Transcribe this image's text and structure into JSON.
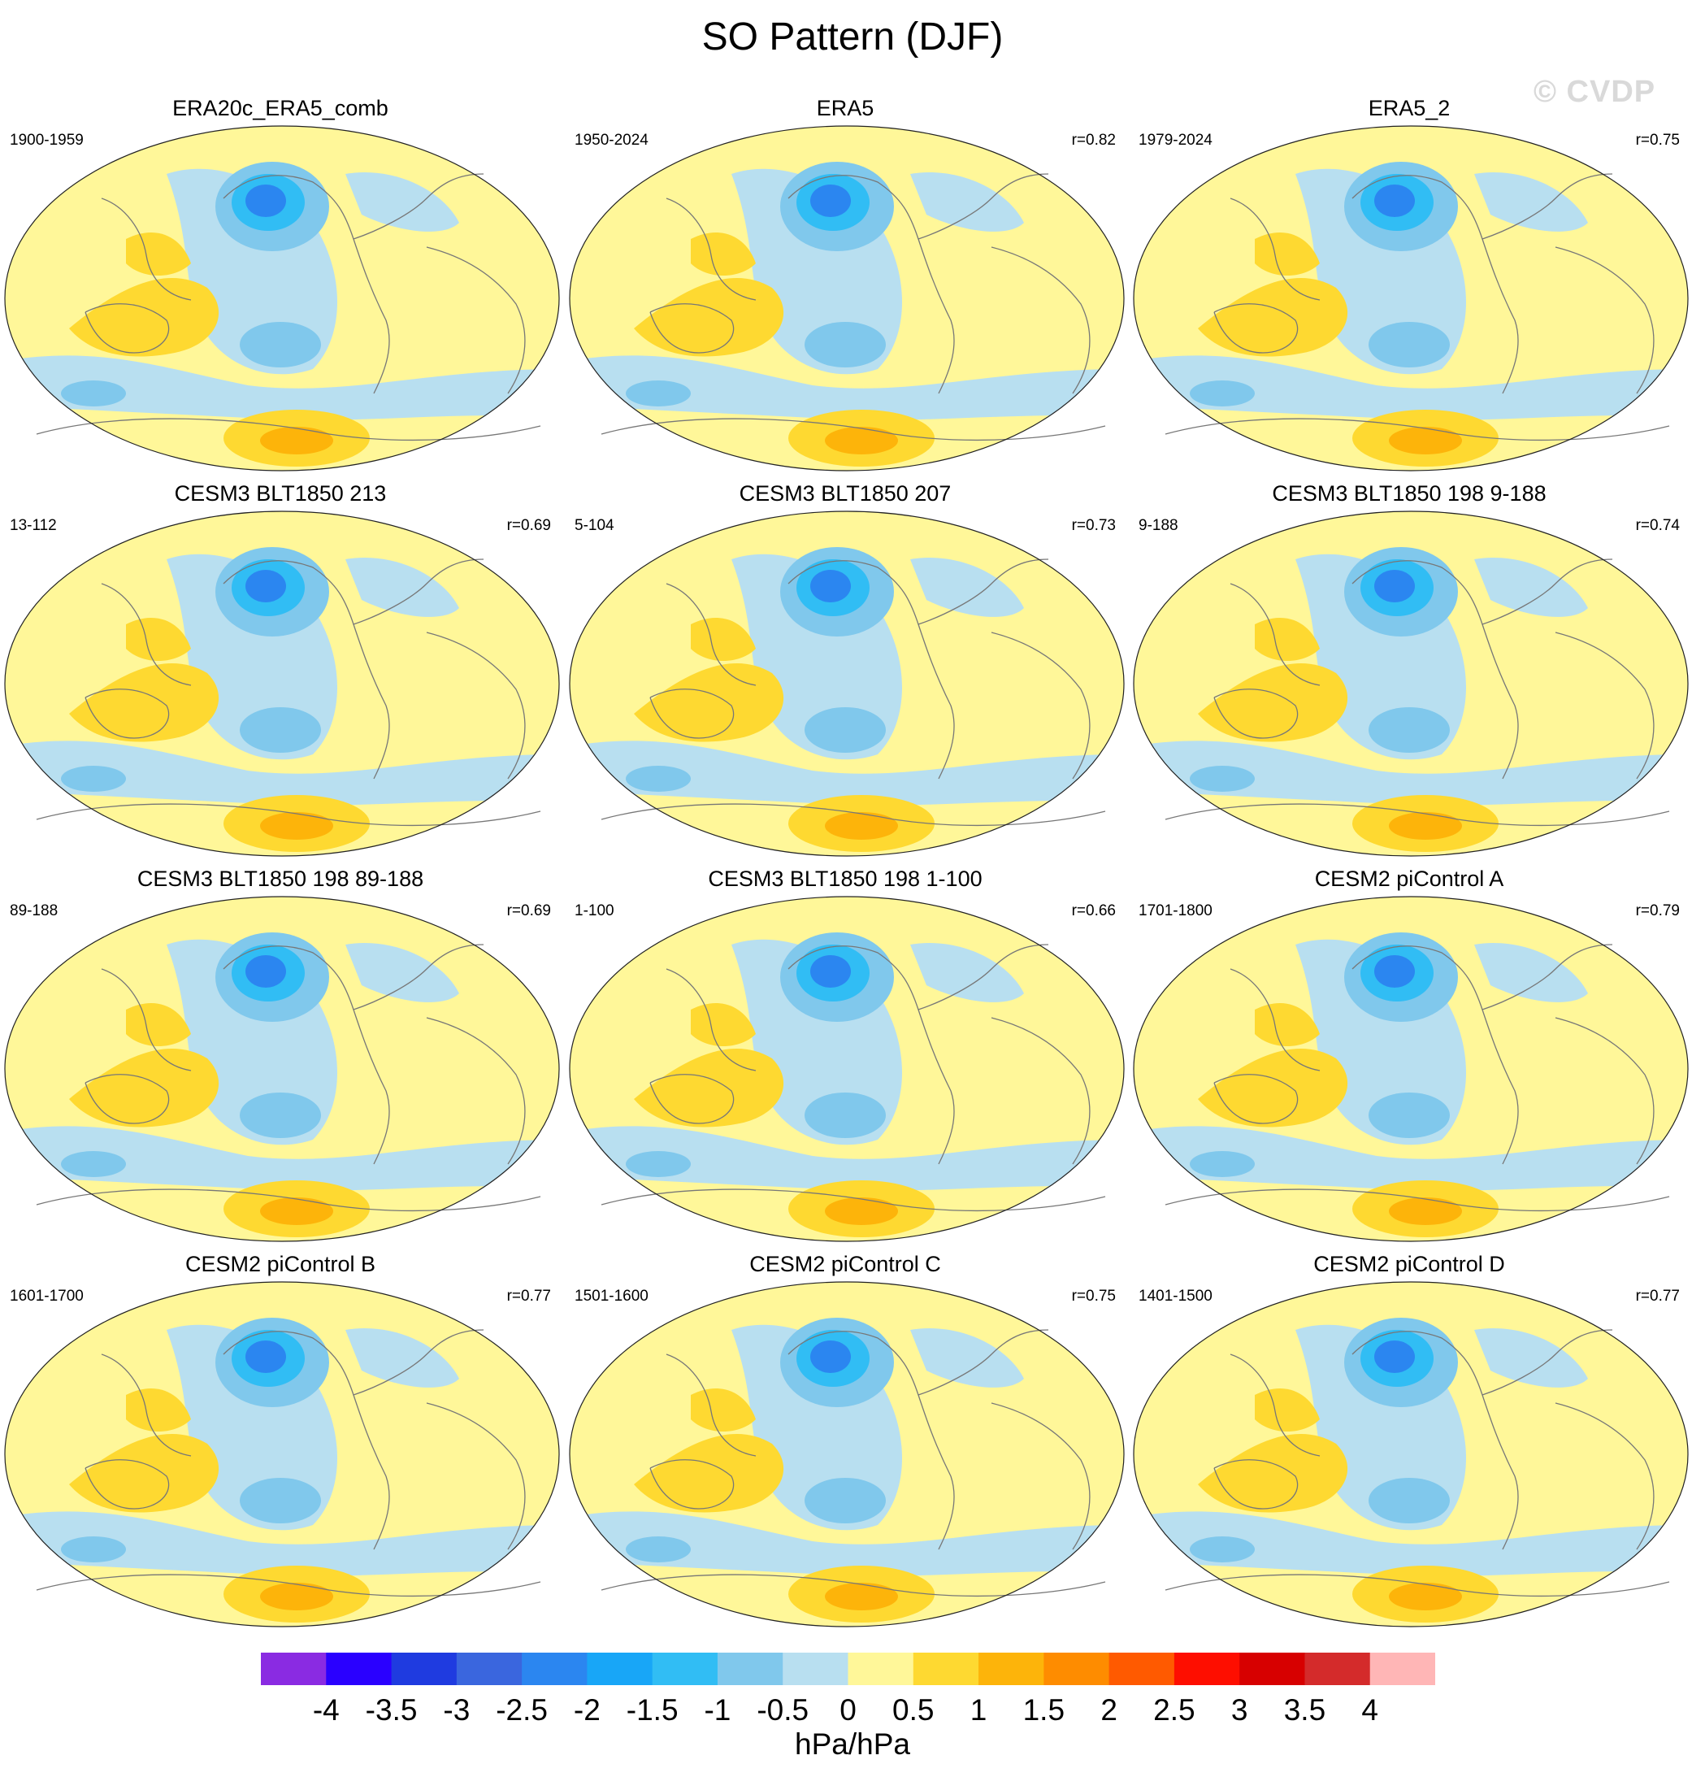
{
  "title": "SO Pattern (DJF)",
  "watermark": "© CVDP",
  "panels": [
    {
      "title": "ERA20c_ERA5_comb",
      "years": "1900-1959",
      "r": ""
    },
    {
      "title": "ERA5",
      "years": "1950-2024",
      "r": "r=0.82"
    },
    {
      "title": "ERA5_2",
      "years": "1979-2024",
      "r": "r=0.75"
    },
    {
      "title": "CESM3 BLT1850 213",
      "years": "13-112",
      "r": "r=0.69"
    },
    {
      "title": "CESM3 BLT1850 207",
      "years": "5-104",
      "r": "r=0.73"
    },
    {
      "title": "CESM3 BLT1850 198 9-188",
      "years": "9-188",
      "r": "r=0.74"
    },
    {
      "title": "CESM3 BLT1850 198 89-188",
      "years": "89-188",
      "r": "r=0.69"
    },
    {
      "title": "CESM3 BLT1850 198 1-100",
      "years": "1-100",
      "r": "r=0.66"
    },
    {
      "title": "CESM2 piControl A",
      "years": "1701-1800",
      "r": "r=0.79"
    },
    {
      "title": "CESM2 piControl B",
      "years": "1601-1700",
      "r": "r=0.77"
    },
    {
      "title": "CESM2 piControl C",
      "years": "1501-1600",
      "r": "r=0.75"
    },
    {
      "title": "CESM2 piControl D",
      "years": "1401-1500",
      "r": "r=0.77"
    }
  ],
  "colorbar": {
    "colors": [
      "#8a2be2",
      "#2a00ff",
      "#1f3be0",
      "#3a66de",
      "#2b86f0",
      "#18a6f7",
      "#31bdf4",
      "#80c8ec",
      "#b8dff0",
      "#fff799",
      "#fed931",
      "#fdb40a",
      "#fe8c00",
      "#ff5a00",
      "#fe0e00",
      "#d70000",
      "#d42b2b",
      "#ffb6b6"
    ],
    "labels": [
      "-4",
      "-3.5",
      "-3",
      "-2.5",
      "-2",
      "-1.5",
      "-1",
      "-0.5",
      "0",
      "0.5",
      "1",
      "1.5",
      "2",
      "2.5",
      "3",
      "3.5",
      "4"
    ],
    "units": "hPa/hPa"
  }
}
